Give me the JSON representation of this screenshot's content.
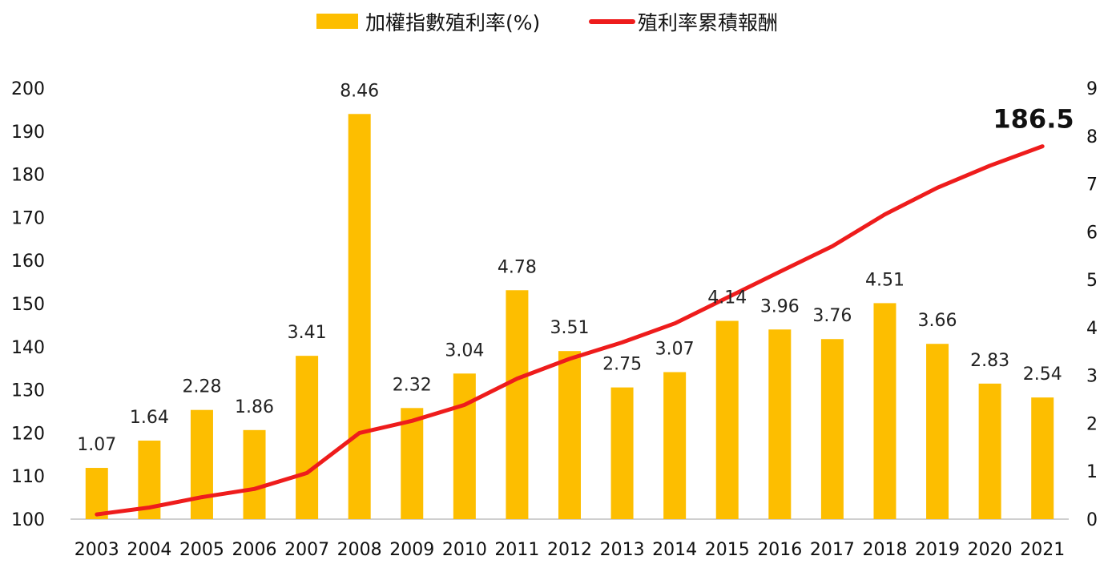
{
  "chart_data": {
    "type": "bar",
    "categories": [
      "2003",
      "2004",
      "2005",
      "2006",
      "2007",
      "2008",
      "2009",
      "2010",
      "2011",
      "2012",
      "2013",
      "2014",
      "2015",
      "2016",
      "2017",
      "2018",
      "2019",
      "2020",
      "2021"
    ],
    "series": [
      {
        "name": "加權指數殖利率(%)",
        "type": "bar",
        "axis": "right",
        "color": "#FDBE00",
        "values": [
          1.07,
          1.64,
          2.28,
          1.86,
          3.41,
          8.46,
          2.32,
          3.04,
          4.78,
          3.51,
          2.75,
          3.07,
          4.14,
          3.96,
          3.76,
          4.51,
          3.66,
          2.83,
          2.54
        ],
        "labels": [
          "1.07",
          "1.64",
          "2.28",
          "1.86",
          "3.41",
          "8.46",
          "2.32",
          "3.04",
          "4.78",
          "3.51",
          "2.75",
          "3.07",
          "4.14",
          "3.96",
          "3.76",
          "4.51",
          "3.66",
          "2.83",
          "2.54"
        ]
      },
      {
        "name": "殖利率累積報酬",
        "type": "line",
        "axis": "left",
        "color": "#EE1C1C",
        "values": [
          101.1,
          102.7,
          105.1,
          107.0,
          110.7,
          120.0,
          122.8,
          126.5,
          132.6,
          137.2,
          141.0,
          145.4,
          151.4,
          157.4,
          163.3,
          170.7,
          176.9,
          182.0,
          186.5
        ]
      }
    ],
    "end_label": "186.5",
    "y_left": {
      "min": 100,
      "max": 200,
      "ticks": [
        "100",
        "110",
        "120",
        "130",
        "140",
        "150",
        "160",
        "170",
        "180",
        "190",
        "200"
      ]
    },
    "y_right": {
      "min": 0,
      "max": 9,
      "ticks": [
        "0",
        "1",
        "2",
        "3",
        "4",
        "5",
        "6",
        "7",
        "8",
        "9"
      ]
    },
    "grid": false,
    "legend": "top-center"
  }
}
